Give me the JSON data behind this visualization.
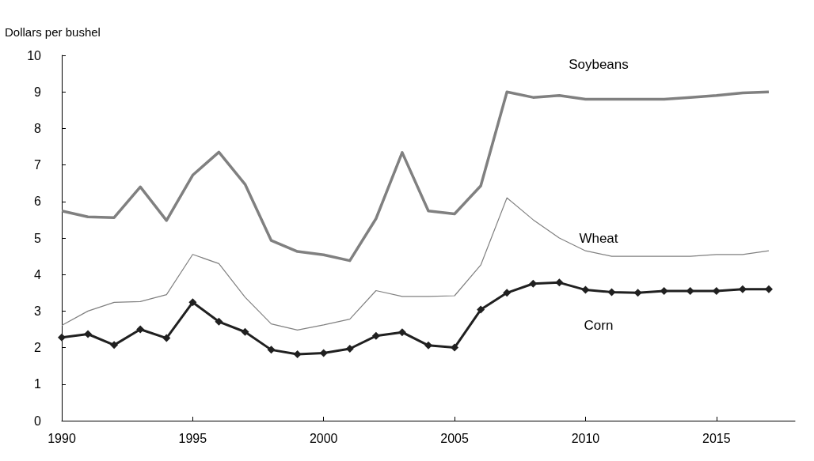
{
  "chart_data": {
    "type": "line",
    "ylabel": "Dollars per bushel",
    "x": [
      1990,
      1991,
      1992,
      1993,
      1994,
      1995,
      1996,
      1997,
      1998,
      1999,
      2000,
      2001,
      2002,
      2003,
      2004,
      2005,
      2006,
      2007,
      2008,
      2009,
      2010,
      2011,
      2012,
      2013,
      2014,
      2015,
      2016,
      2017
    ],
    "series": [
      {
        "name": "Soybeans",
        "color": "#808080",
        "marker": "none",
        "values": [
          5.74,
          5.58,
          5.56,
          6.4,
          5.48,
          6.72,
          7.35,
          6.47,
          4.93,
          4.63,
          4.54,
          4.38,
          5.53,
          7.34,
          5.74,
          5.66,
          6.43,
          9.0,
          8.85,
          8.9,
          8.8,
          8.8,
          8.8,
          8.8,
          8.85,
          8.9,
          8.97,
          9.0
        ]
      },
      {
        "name": "Wheat",
        "color": "#808080",
        "marker": "none",
        "values": [
          2.61,
          3.0,
          3.24,
          3.26,
          3.45,
          4.55,
          4.3,
          3.38,
          2.65,
          2.48,
          2.62,
          2.78,
          3.56,
          3.4,
          3.4,
          3.42,
          4.26,
          6.1,
          5.5,
          5.0,
          4.65,
          4.5,
          4.5,
          4.5,
          4.5,
          4.55,
          4.55,
          4.65
        ]
      },
      {
        "name": "Corn",
        "color": "#202020",
        "marker": "diamond",
        "values": [
          2.28,
          2.37,
          2.07,
          2.5,
          2.26,
          3.24,
          2.71,
          2.43,
          1.94,
          1.82,
          1.85,
          1.97,
          2.32,
          2.42,
          2.06,
          2.0,
          3.04,
          3.5,
          3.75,
          3.78,
          3.58,
          3.52,
          3.5,
          3.55,
          3.55,
          3.55,
          3.6,
          3.6
        ]
      }
    ],
    "xlim": [
      1990,
      2018
    ],
    "xticks": [
      1990,
      1995,
      2000,
      2005,
      2010,
      2015
    ],
    "ylim": [
      0,
      10
    ],
    "yticks": [
      0,
      1,
      2,
      3,
      4,
      5,
      6,
      7,
      8,
      9,
      10
    ],
    "grid": false,
    "legend": false
  }
}
